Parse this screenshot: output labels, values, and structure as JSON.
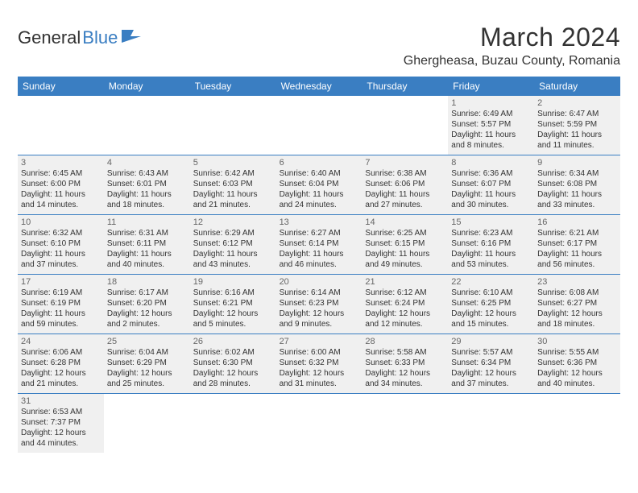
{
  "logo": {
    "text_main": "General",
    "text_accent": "Blue"
  },
  "title": "March 2024",
  "location": "Ghergheasa, Buzau County, Romania",
  "day_names": [
    "Sunday",
    "Monday",
    "Tuesday",
    "Wednesday",
    "Thursday",
    "Friday",
    "Saturday"
  ],
  "colors": {
    "header_bg": "#3a7ec2",
    "header_text": "#ffffff",
    "cell_bg": "#f0f0f0",
    "border": "#3a7ec2",
    "text": "#333333"
  },
  "weeks": [
    [
      {
        "empty": true
      },
      {
        "empty": true
      },
      {
        "empty": true
      },
      {
        "empty": true
      },
      {
        "empty": true
      },
      {
        "day": "1",
        "sunrise": "Sunrise: 6:49 AM",
        "sunset": "Sunset: 5:57 PM",
        "daylight1": "Daylight: 11 hours",
        "daylight2": "and 8 minutes."
      },
      {
        "day": "2",
        "sunrise": "Sunrise: 6:47 AM",
        "sunset": "Sunset: 5:59 PM",
        "daylight1": "Daylight: 11 hours",
        "daylight2": "and 11 minutes."
      }
    ],
    [
      {
        "day": "3",
        "sunrise": "Sunrise: 6:45 AM",
        "sunset": "Sunset: 6:00 PM",
        "daylight1": "Daylight: 11 hours",
        "daylight2": "and 14 minutes."
      },
      {
        "day": "4",
        "sunrise": "Sunrise: 6:43 AM",
        "sunset": "Sunset: 6:01 PM",
        "daylight1": "Daylight: 11 hours",
        "daylight2": "and 18 minutes."
      },
      {
        "day": "5",
        "sunrise": "Sunrise: 6:42 AM",
        "sunset": "Sunset: 6:03 PM",
        "daylight1": "Daylight: 11 hours",
        "daylight2": "and 21 minutes."
      },
      {
        "day": "6",
        "sunrise": "Sunrise: 6:40 AM",
        "sunset": "Sunset: 6:04 PM",
        "daylight1": "Daylight: 11 hours",
        "daylight2": "and 24 minutes."
      },
      {
        "day": "7",
        "sunrise": "Sunrise: 6:38 AM",
        "sunset": "Sunset: 6:06 PM",
        "daylight1": "Daylight: 11 hours",
        "daylight2": "and 27 minutes."
      },
      {
        "day": "8",
        "sunrise": "Sunrise: 6:36 AM",
        "sunset": "Sunset: 6:07 PM",
        "daylight1": "Daylight: 11 hours",
        "daylight2": "and 30 minutes."
      },
      {
        "day": "9",
        "sunrise": "Sunrise: 6:34 AM",
        "sunset": "Sunset: 6:08 PM",
        "daylight1": "Daylight: 11 hours",
        "daylight2": "and 33 minutes."
      }
    ],
    [
      {
        "day": "10",
        "sunrise": "Sunrise: 6:32 AM",
        "sunset": "Sunset: 6:10 PM",
        "daylight1": "Daylight: 11 hours",
        "daylight2": "and 37 minutes."
      },
      {
        "day": "11",
        "sunrise": "Sunrise: 6:31 AM",
        "sunset": "Sunset: 6:11 PM",
        "daylight1": "Daylight: 11 hours",
        "daylight2": "and 40 minutes."
      },
      {
        "day": "12",
        "sunrise": "Sunrise: 6:29 AM",
        "sunset": "Sunset: 6:12 PM",
        "daylight1": "Daylight: 11 hours",
        "daylight2": "and 43 minutes."
      },
      {
        "day": "13",
        "sunrise": "Sunrise: 6:27 AM",
        "sunset": "Sunset: 6:14 PM",
        "daylight1": "Daylight: 11 hours",
        "daylight2": "and 46 minutes."
      },
      {
        "day": "14",
        "sunrise": "Sunrise: 6:25 AM",
        "sunset": "Sunset: 6:15 PM",
        "daylight1": "Daylight: 11 hours",
        "daylight2": "and 49 minutes."
      },
      {
        "day": "15",
        "sunrise": "Sunrise: 6:23 AM",
        "sunset": "Sunset: 6:16 PM",
        "daylight1": "Daylight: 11 hours",
        "daylight2": "and 53 minutes."
      },
      {
        "day": "16",
        "sunrise": "Sunrise: 6:21 AM",
        "sunset": "Sunset: 6:17 PM",
        "daylight1": "Daylight: 11 hours",
        "daylight2": "and 56 minutes."
      }
    ],
    [
      {
        "day": "17",
        "sunrise": "Sunrise: 6:19 AM",
        "sunset": "Sunset: 6:19 PM",
        "daylight1": "Daylight: 11 hours",
        "daylight2": "and 59 minutes."
      },
      {
        "day": "18",
        "sunrise": "Sunrise: 6:17 AM",
        "sunset": "Sunset: 6:20 PM",
        "daylight1": "Daylight: 12 hours",
        "daylight2": "and 2 minutes."
      },
      {
        "day": "19",
        "sunrise": "Sunrise: 6:16 AM",
        "sunset": "Sunset: 6:21 PM",
        "daylight1": "Daylight: 12 hours",
        "daylight2": "and 5 minutes."
      },
      {
        "day": "20",
        "sunrise": "Sunrise: 6:14 AM",
        "sunset": "Sunset: 6:23 PM",
        "daylight1": "Daylight: 12 hours",
        "daylight2": "and 9 minutes."
      },
      {
        "day": "21",
        "sunrise": "Sunrise: 6:12 AM",
        "sunset": "Sunset: 6:24 PM",
        "daylight1": "Daylight: 12 hours",
        "daylight2": "and 12 minutes."
      },
      {
        "day": "22",
        "sunrise": "Sunrise: 6:10 AM",
        "sunset": "Sunset: 6:25 PM",
        "daylight1": "Daylight: 12 hours",
        "daylight2": "and 15 minutes."
      },
      {
        "day": "23",
        "sunrise": "Sunrise: 6:08 AM",
        "sunset": "Sunset: 6:27 PM",
        "daylight1": "Daylight: 12 hours",
        "daylight2": "and 18 minutes."
      }
    ],
    [
      {
        "day": "24",
        "sunrise": "Sunrise: 6:06 AM",
        "sunset": "Sunset: 6:28 PM",
        "daylight1": "Daylight: 12 hours",
        "daylight2": "and 21 minutes."
      },
      {
        "day": "25",
        "sunrise": "Sunrise: 6:04 AM",
        "sunset": "Sunset: 6:29 PM",
        "daylight1": "Daylight: 12 hours",
        "daylight2": "and 25 minutes."
      },
      {
        "day": "26",
        "sunrise": "Sunrise: 6:02 AM",
        "sunset": "Sunset: 6:30 PM",
        "daylight1": "Daylight: 12 hours",
        "daylight2": "and 28 minutes."
      },
      {
        "day": "27",
        "sunrise": "Sunrise: 6:00 AM",
        "sunset": "Sunset: 6:32 PM",
        "daylight1": "Daylight: 12 hours",
        "daylight2": "and 31 minutes."
      },
      {
        "day": "28",
        "sunrise": "Sunrise: 5:58 AM",
        "sunset": "Sunset: 6:33 PM",
        "daylight1": "Daylight: 12 hours",
        "daylight2": "and 34 minutes."
      },
      {
        "day": "29",
        "sunrise": "Sunrise: 5:57 AM",
        "sunset": "Sunset: 6:34 PM",
        "daylight1": "Daylight: 12 hours",
        "daylight2": "and 37 minutes."
      },
      {
        "day": "30",
        "sunrise": "Sunrise: 5:55 AM",
        "sunset": "Sunset: 6:36 PM",
        "daylight1": "Daylight: 12 hours",
        "daylight2": "and 40 minutes."
      }
    ],
    [
      {
        "day": "31",
        "sunrise": "Sunrise: 6:53 AM",
        "sunset": "Sunset: 7:37 PM",
        "daylight1": "Daylight: 12 hours",
        "daylight2": "and 44 minutes."
      },
      {
        "empty": true
      },
      {
        "empty": true
      },
      {
        "empty": true
      },
      {
        "empty": true
      },
      {
        "empty": true
      },
      {
        "empty": true
      }
    ]
  ]
}
